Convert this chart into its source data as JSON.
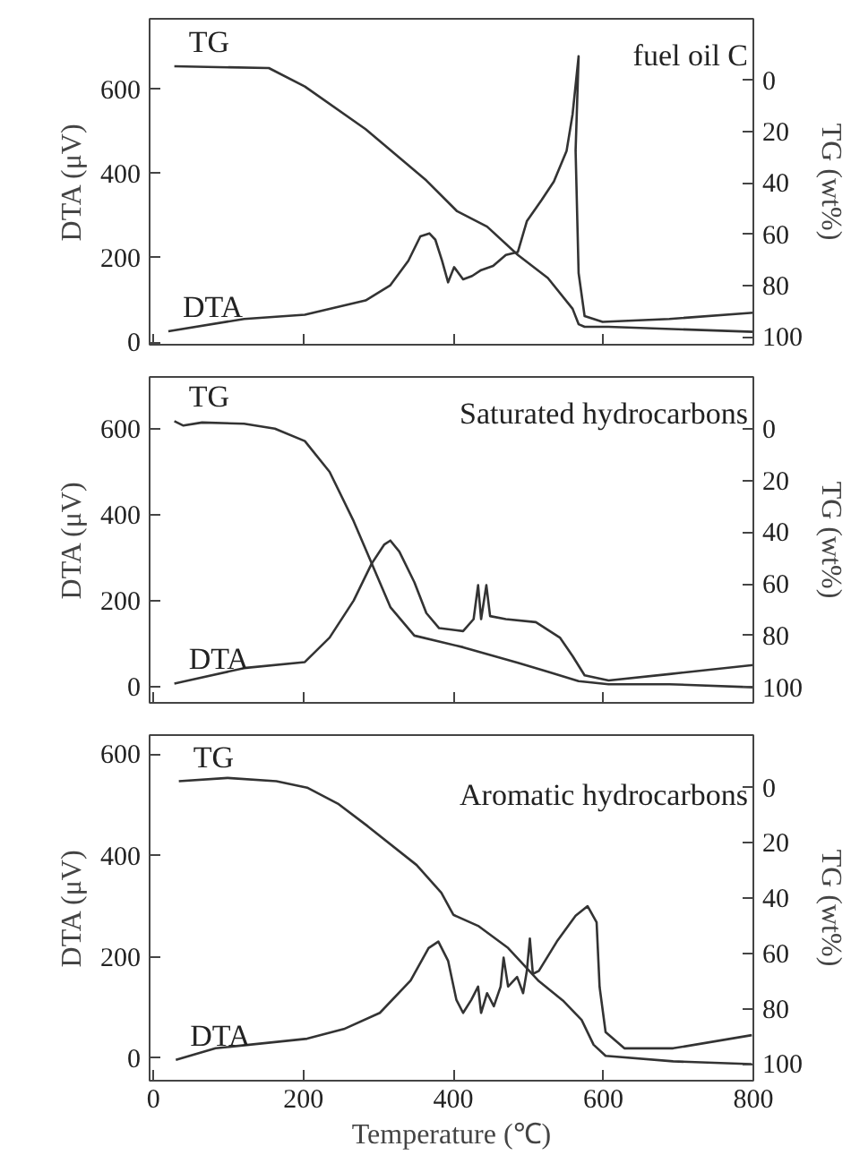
{
  "chart_data": [
    {
      "type": "line",
      "title": "fuel oil C",
      "ylabel": "DTA (μV)",
      "y2label": "TG (wt%)",
      "xlim": [
        -5,
        800
      ],
      "xticks": [
        0,
        200,
        400,
        600,
        800
      ],
      "ylim": [
        -6,
        767
      ],
      "yticks": [
        0,
        200,
        400,
        600
      ],
      "y2lim": [
        103,
        -24
      ],
      "y2ticks": [
        0,
        20,
        40,
        60,
        80,
        100
      ],
      "tick_labels": "y",
      "series": [
        {
          "name": "DTA",
          "color": "#333333",
          "x": [
            20,
            121,
            202,
            283,
            316,
            340,
            356,
            368,
            376,
            385,
            393,
            401,
            413,
            425,
            437,
            453,
            470,
            486,
            498,
            518,
            534,
            551,
            559,
            567,
            563,
            567,
            575,
            599,
            688,
            800
          ],
          "values": [
            26,
            55,
            65,
            99,
            135,
            193,
            251,
            258,
            243,
            193,
            142,
            178,
            149,
            157,
            171,
            181,
            207,
            214,
            287,
            338,
            381,
            454,
            541,
            678,
            454,
            164,
            62,
            48,
            55,
            70
          ]
        },
        {
          "name": "TG",
          "axis": "y2",
          "color": "#333333",
          "x": [
            28,
            154,
            202,
            283,
            364,
            405,
            445,
            486,
            526,
            559,
            567,
            575,
            607,
            800
          ],
          "values": [
            -5.5,
            -4.8,
            2.4,
            19,
            39,
            51,
            57,
            68,
            77,
            89,
            95,
            96,
            96,
            98
          ]
        }
      ]
    },
    {
      "type": "line",
      "title": "Saturated hydrocarbons",
      "ylabel": "DTA (μV)",
      "y2label": "TG (wt%)",
      "xlim": [
        -5,
        800
      ],
      "xticks": [
        0,
        200,
        400,
        600,
        800
      ],
      "ylim": [
        -38,
        721
      ],
      "yticks": [
        0,
        200,
        400,
        600
      ],
      "y2lim": [
        106,
        -20
      ],
      "y2ticks": [
        0,
        20,
        40,
        60,
        80,
        100
      ],
      "tick_labels": "y",
      "series": [
        {
          "name": "DTA",
          "color": "#333333",
          "x": [
            28,
            121,
            202,
            235,
            267,
            291,
            308,
            316,
            328,
            348,
            364,
            381,
            413,
            427,
            433,
            437,
            444,
            449,
            470,
            510,
            542,
            559,
            575,
            607,
            688,
            800
          ],
          "values": [
            7,
            43,
            57,
            114,
            200,
            286,
            331,
            340,
            314,
            243,
            171,
            136,
            129,
            157,
            236,
            157,
            236,
            164,
            157,
            150,
            114,
            71,
            26,
            14,
            29,
            50
          ]
        },
        {
          "name": "TG",
          "axis": "y2",
          "color": "#333333",
          "x": [
            28,
            40,
            65,
            121,
            162,
            202,
            235,
            267,
            291,
            316,
            348,
            413,
            486,
            526,
            567,
            607,
            688,
            800
          ],
          "values": [
            -2.9,
            -1.2,
            -2.4,
            -1.9,
            0,
            4.8,
            16.7,
            35.7,
            52,
            69,
            80,
            84.5,
            90.5,
            94,
            97.6,
            98.8,
            98.8,
            100
          ]
        }
      ]
    },
    {
      "type": "line",
      "title": "Aromatic hydrocarbons",
      "xlabel": "Temperature (℃)",
      "ylabel": "DTA (μV)",
      "y2label": "TG (wt%)",
      "xlim": [
        -5,
        800
      ],
      "xticks": [
        0,
        200,
        400,
        600,
        800
      ],
      "ylim": [
        -45,
        638
      ],
      "yticks": [
        0,
        200,
        400,
        600
      ],
      "y2lim": [
        106,
        -19
      ],
      "y2ticks": [
        0,
        20,
        40,
        60,
        80,
        100
      ],
      "series": [
        {
          "name": "DTA",
          "color": "#333333",
          "x": [
            30,
            83,
            205,
            254,
            302,
            343,
            367,
            380,
            393,
            404,
            413,
            424,
            433,
            437,
            445,
            454,
            463,
            467,
            473,
            485,
            493,
            498,
            502,
            506,
            514,
            538,
            563,
            579,
            591,
            595,
            603,
            628,
            693,
            798
          ],
          "values": [
            -4,
            19,
            38,
            57,
            89,
            153,
            217,
            230,
            192,
            115,
            89,
            115,
            141,
            89,
            128,
            102,
            141,
            198,
            141,
            160,
            128,
            172,
            236,
            166,
            172,
            230,
            281,
            300,
            268,
            140,
            51,
            19,
            19,
            45
          ]
        },
        {
          "name": "TG",
          "axis": "y2",
          "color": "#333333",
          "x": [
            34,
            99,
            164,
            205,
            246,
            286,
            351,
            384,
            400,
            433,
            473,
            514,
            546,
            571,
            587,
            603,
            693,
            798
          ],
          "values": [
            -2.3,
            -3.5,
            -2.3,
            0,
            5.8,
            14,
            28,
            38,
            46,
            50,
            58,
            70,
            77,
            84,
            93,
            97,
            99,
            100
          ]
        }
      ]
    }
  ]
}
